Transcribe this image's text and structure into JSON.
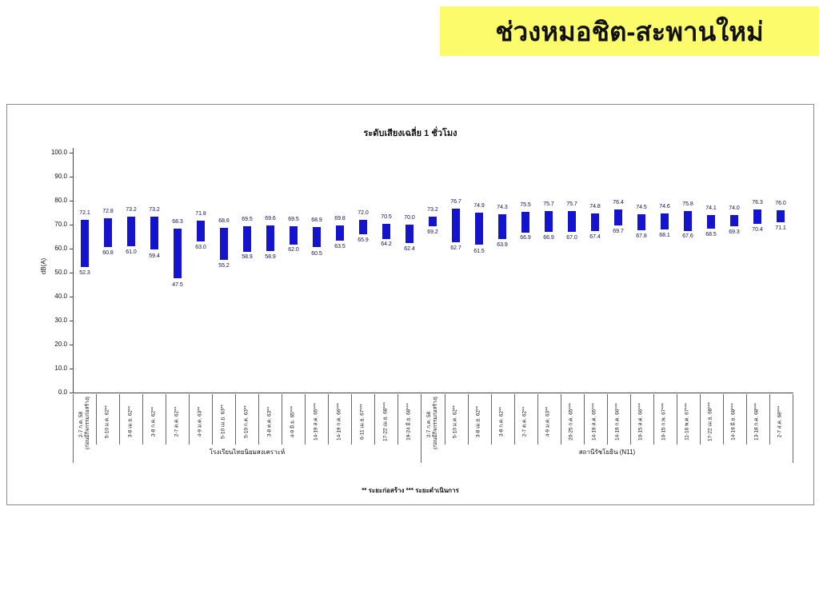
{
  "banner": {
    "text": "ช่วงหมอชิต-สะพานใหม่",
    "bg_color": "#fbfb6b"
  },
  "chart_data": {
    "type": "bar",
    "subtype": "floating-range-bar",
    "title": "ระดับเสียงเฉลี่ย 1 ชั่วโมง",
    "ylabel": "dB(A)",
    "ylim": [
      0,
      100
    ],
    "ytick_step": 10,
    "yticks": [
      "100.0",
      "90.0",
      "80.0",
      "70.0",
      "60.0",
      "50.0",
      "40.0",
      "30.0",
      "20.0",
      "10.0",
      "0.0"
    ],
    "grid": false,
    "bar_color": "#1414ce",
    "footnote": "** ระยะก่อสร้าง    *** ระยะดำเนินการ",
    "groups": [
      {
        "label": "โรงเรียนไทยนิยมสงเคราะห์",
        "count": 15
      },
      {
        "label": "สถานีรัชโยธิน (N11)",
        "count": 16
      }
    ],
    "bars": [
      {
        "label": "2-7 ก.ค. 58",
        "label2": "(ก่อนมีกิจกรรมก่อสร้าง)",
        "min": 52.3,
        "max": 72.1
      },
      {
        "label": "5-10 ม.ค. 62**",
        "min": 60.8,
        "max": 72.8
      },
      {
        "label": "3-8 เม.ย. 62**",
        "min": 61.0,
        "max": 73.2
      },
      {
        "label": "3-8 ก.ค. 62**",
        "min": 59.4,
        "max": 73.2
      },
      {
        "label": "2-7 ต.ค. 62**",
        "min": 47.5,
        "max": 68.3
      },
      {
        "label": "4-9 ม.ค. 63**",
        "min": 63.0,
        "max": 71.8
      },
      {
        "label": "5-10 เม.ย. 63**",
        "min": 55.2,
        "max": 68.6
      },
      {
        "label": "5-10 ก.ค. 63**",
        "min": 58.9,
        "max": 69.5
      },
      {
        "label": "3-8 ต.ค. 63**",
        "min": 58.9,
        "max": 69.6
      },
      {
        "label": "4-9 มิ.ย. 65***",
        "min": 62.0,
        "max": 69.5
      },
      {
        "label": "14-19 ส.ค. 65***",
        "min": 60.5,
        "max": 68.9
      },
      {
        "label": "14-19 ก.ค. 66***",
        "min": 63.5,
        "max": 69.8
      },
      {
        "label": "6-11 เม.ย. 67***",
        "min": 65.9,
        "max": 72.0
      },
      {
        "label": "17-22 เม.ย. 68***",
        "min": 64.2,
        "max": 70.5
      },
      {
        "label": "19-24 มิ.ย. 68***",
        "min": 62.4,
        "max": 70.0
      },
      {
        "label": "2-7 ก.ค. 58",
        "label2": "(ก่อนมีกิจกรรมก่อสร้าง)",
        "min": 69.2,
        "max": 73.2
      },
      {
        "label": "5-10 ม.ค. 62**",
        "min": 62.7,
        "max": 76.7
      },
      {
        "label": "3-8 เม.ย. 62**",
        "min": 61.5,
        "max": 74.9
      },
      {
        "label": "3-8 ก.ค. 62**",
        "min": 63.9,
        "max": 74.3
      },
      {
        "label": "2-7 ต.ค. 62**",
        "min": 66.9,
        "max": 75.5
      },
      {
        "label": "4-9 ม.ค. 63**",
        "min": 66.9,
        "max": 75.7
      },
      {
        "label": "20-25 ก.ค. 65***",
        "min": 67.0,
        "max": 75.7
      },
      {
        "label": "14-19 ส.ค. 65***",
        "min": 67.4,
        "max": 74.8
      },
      {
        "label": "14-19 ก.ค. 66***",
        "min": 69.7,
        "max": 76.4
      },
      {
        "label": "10-15 ส.ค. 66***",
        "min": 67.8,
        "max": 74.5
      },
      {
        "label": "10-15 ก.พ. 67***",
        "min": 68.1,
        "max": 74.6
      },
      {
        "label": "11-16 พ.ค. 67***",
        "min": 67.6,
        "max": 75.8
      },
      {
        "label": "17-22 เม.ย. 68***",
        "min": 68.5,
        "max": 74.1
      },
      {
        "label": "14-19 มิ.ย. 68***",
        "min": 69.3,
        "max": 74.0
      },
      {
        "label": "13-18 ก.ค. 68***",
        "min": 70.4,
        "max": 76.3
      },
      {
        "label": "2-7 ส.ค. 68***",
        "min": 71.1,
        "max": 76.0
      }
    ]
  }
}
